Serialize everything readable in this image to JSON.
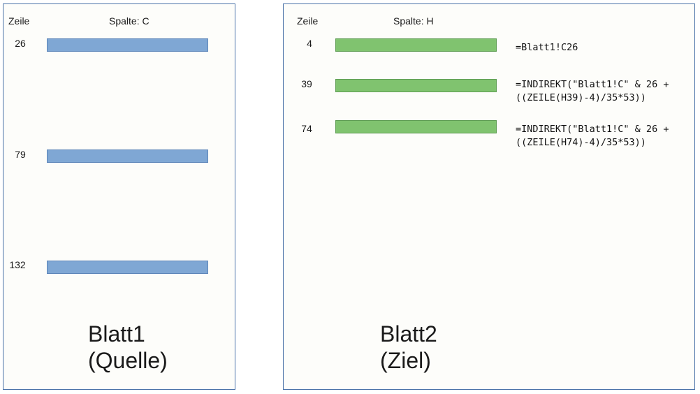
{
  "sheet1": {
    "row_header": "Zeile",
    "col_header": "Spalte: C",
    "rows": [
      {
        "row": "26"
      },
      {
        "row": "79"
      },
      {
        "row": "132"
      }
    ],
    "title_line1": "Blatt1",
    "title_line2": "(Quelle)",
    "bar_color": "#7fa7d4"
  },
  "sheet2": {
    "row_header": "Zeile",
    "col_header": "Spalte: H",
    "rows": [
      {
        "row": "4",
        "formula": "=Blatt1!C26"
      },
      {
        "row": "39",
        "formula": "=INDIREKT(\"Blatt1!C\" & 26 +\n((ZEILE(H39)-4)/35*53))"
      },
      {
        "row": "74",
        "formula": "=INDIREKT(\"Blatt1!C\" & 26 +\n((ZEILE(H74)-4)/35*53))"
      }
    ],
    "title_line1": "Blatt2",
    "title_line2": "(Ziel)",
    "bar_color": "#80c36f"
  }
}
